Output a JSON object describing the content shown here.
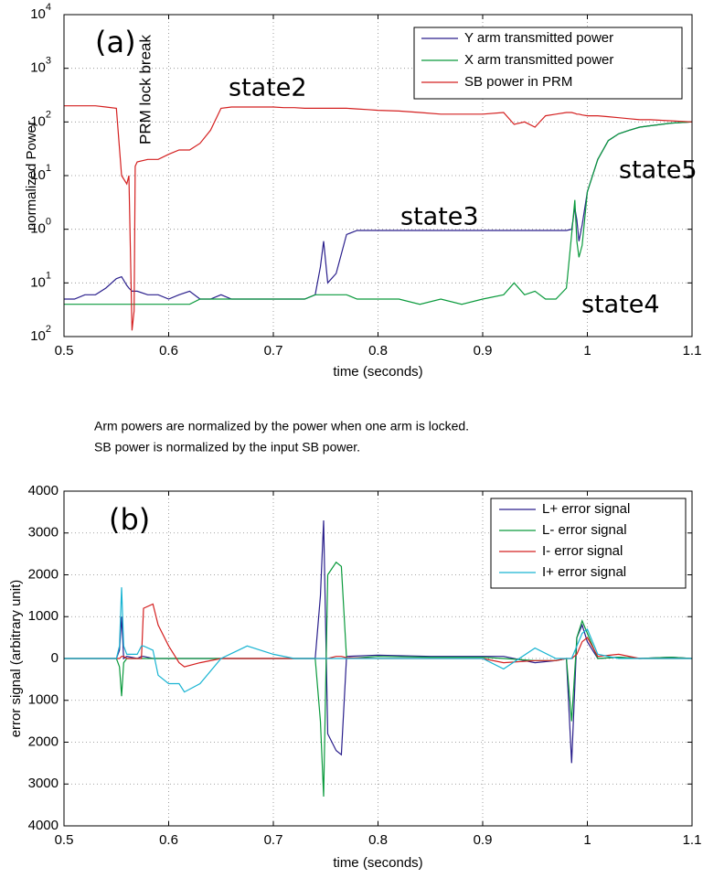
{
  "chart_data": [
    {
      "type": "line",
      "xlabel": "time (seconds)",
      "ylabel": "normalized Power",
      "ylog": true,
      "grid": true,
      "legend": "upper right",
      "xlim": [
        0.5,
        1.1
      ],
      "xticks": [
        0.5,
        0.6,
        0.7,
        0.8,
        0.9,
        1,
        1.1
      ],
      "ylim": [
        0.01,
        10000
      ],
      "yticks": [
        {
          "value": 0.01,
          "label": "10",
          "exponent": "2"
        },
        {
          "value": 0.1,
          "label": "10",
          "exponent": "1"
        },
        {
          "value": 1,
          "label": "10",
          "exponent": "0"
        },
        {
          "value": 10,
          "label": "10",
          "exponent": "1"
        },
        {
          "value": 100,
          "label": "10",
          "exponent": "2"
        },
        {
          "value": 1000,
          "label": "10",
          "exponent": "3"
        },
        {
          "value": 10000,
          "label": "10",
          "exponent": "4"
        }
      ],
      "annotations": [
        "(a)",
        "PRM lock break",
        "state2",
        "state3",
        "state5",
        "state4"
      ],
      "x": [
        0.5,
        0.51,
        0.52,
        0.53,
        0.54,
        0.55,
        0.555,
        0.56,
        0.562,
        0.565,
        0.567,
        0.568,
        0.57,
        0.58,
        0.59,
        0.6,
        0.61,
        0.62,
        0.63,
        0.64,
        0.65,
        0.66,
        0.67,
        0.68,
        0.69,
        0.7,
        0.71,
        0.72,
        0.73,
        0.74,
        0.745,
        0.748,
        0.752,
        0.76,
        0.77,
        0.78,
        0.79,
        0.8,
        0.82,
        0.84,
        0.86,
        0.88,
        0.9,
        0.92,
        0.93,
        0.94,
        0.95,
        0.96,
        0.97,
        0.98,
        0.985,
        0.988,
        0.99,
        0.992,
        0.995,
        1.0,
        1.01,
        1.02,
        1.03,
        1.04,
        1.05,
        1.06,
        1.08,
        1.1
      ],
      "series": [
        {
          "name": "Y arm transmitted power",
          "color": "#2a1f8c",
          "values": [
            0.05,
            0.05,
            0.06,
            0.06,
            0.08,
            0.12,
            0.13,
            0.09,
            0.08,
            0.07,
            0.07,
            0.07,
            0.07,
            0.06,
            0.06,
            0.05,
            0.06,
            0.07,
            0.05,
            0.05,
            0.06,
            0.05,
            0.05,
            0.05,
            0.05,
            0.05,
            0.05,
            0.05,
            0.05,
            0.06,
            0.2,
            0.6,
            0.1,
            0.15,
            0.8,
            0.95,
            0.95,
            0.95,
            0.95,
            0.95,
            0.95,
            0.95,
            0.95,
            0.95,
            0.95,
            0.95,
            0.95,
            0.95,
            0.95,
            0.95,
            1,
            2.5,
            1.5,
            0.6,
            1.2,
            5,
            20,
            45,
            60,
            70,
            80,
            85,
            95,
            100
          ]
        },
        {
          "name": "X arm transmitted power",
          "color": "#0a9a3c",
          "values": [
            0.04,
            0.04,
            0.04,
            0.04,
            0.04,
            0.04,
            0.04,
            0.04,
            0.04,
            0.04,
            0.04,
            0.04,
            0.04,
            0.04,
            0.04,
            0.04,
            0.04,
            0.04,
            0.05,
            0.05,
            0.05,
            0.05,
            0.05,
            0.05,
            0.05,
            0.05,
            0.05,
            0.05,
            0.05,
            0.06,
            0.06,
            0.06,
            0.06,
            0.06,
            0.06,
            0.05,
            0.05,
            0.05,
            0.05,
            0.04,
            0.05,
            0.04,
            0.05,
            0.06,
            0.1,
            0.06,
            0.07,
            0.05,
            0.05,
            0.08,
            0.8,
            3.5,
            0.6,
            0.3,
            0.5,
            5,
            20,
            45,
            60,
            70,
            80,
            85,
            95,
            100
          ]
        },
        {
          "name": "SB power in PRM",
          "color": "#d42020",
          "values": [
            200,
            200,
            200,
            200,
            190,
            180,
            10,
            7,
            10,
            0.013,
            0.03,
            15,
            18,
            20,
            20,
            25,
            30,
            30,
            40,
            70,
            180,
            190,
            190,
            190,
            190,
            190,
            185,
            185,
            180,
            180,
            180,
            180,
            180,
            180,
            180,
            175,
            170,
            165,
            160,
            150,
            140,
            140,
            140,
            150,
            90,
            100,
            80,
            130,
            140,
            150,
            150,
            145,
            140,
            140,
            135,
            130,
            130,
            125,
            120,
            115,
            110,
            110,
            105,
            100
          ]
        }
      ]
    },
    {
      "type": "line",
      "xlabel": "time (seconds)",
      "ylabel": "error signal (arbitrary unit)",
      "grid": true,
      "legend": "upper right",
      "xlim": [
        0.5,
        1.1
      ],
      "xticks": [
        0.5,
        0.6,
        0.7,
        0.8,
        0.9,
        1,
        1.1
      ],
      "ylim": [
        -4000,
        4000
      ],
      "yticks": [
        {
          "value": -4000,
          "label": "4000"
        },
        {
          "value": -3000,
          "label": "3000"
        },
        {
          "value": -2000,
          "label": "2000"
        },
        {
          "value": -1000,
          "label": "1000"
        },
        0,
        1000,
        2000,
        3000,
        4000
      ],
      "annotations": [
        "(b)"
      ],
      "x": [
        0.5,
        0.53,
        0.55,
        0.553,
        0.555,
        0.557,
        0.56,
        0.57,
        0.574,
        0.576,
        0.585,
        0.59,
        0.6,
        0.61,
        0.615,
        0.63,
        0.65,
        0.675,
        0.7,
        0.72,
        0.74,
        0.745,
        0.748,
        0.752,
        0.76,
        0.765,
        0.77,
        0.8,
        0.85,
        0.9,
        0.92,
        0.95,
        0.97,
        0.98,
        0.985,
        0.99,
        0.995,
        1.0,
        1.01,
        1.03,
        1.05,
        1.08,
        1.1
      ],
      "series": [
        {
          "name": "L+ error signal",
          "color": "#2a1f8c",
          "values": [
            0,
            0,
            0,
            200,
            1000,
            0,
            50,
            0,
            50,
            50,
            0,
            0,
            0,
            0,
            0,
            0,
            0,
            0,
            0,
            0,
            0,
            1500,
            3300,
            -1800,
            -2200,
            -2300,
            50,
            80,
            50,
            50,
            50,
            -100,
            -50,
            0,
            -2500,
            500,
            800,
            400,
            0,
            30,
            0,
            30,
            0
          ]
        },
        {
          "name": "L-  error signal",
          "color": "#0a9a3c",
          "values": [
            0,
            0,
            0,
            -200,
            -900,
            -100,
            0,
            0,
            0,
            0,
            0,
            0,
            0,
            0,
            0,
            0,
            0,
            0,
            0,
            0,
            0,
            -1500,
            -3300,
            2000,
            2300,
            2200,
            0,
            50,
            30,
            30,
            0,
            -50,
            -50,
            0,
            -1500,
            500,
            900,
            600,
            0,
            30,
            0,
            30,
            0
          ]
        },
        {
          "name": "I-  error signal",
          "color": "#d42020",
          "values": [
            0,
            0,
            0,
            0,
            50,
            50,
            0,
            0,
            0,
            1200,
            1300,
            800,
            300,
            -100,
            -200,
            -100,
            0,
            0,
            0,
            0,
            0,
            0,
            0,
            0,
            50,
            50,
            20,
            0,
            0,
            0,
            -100,
            -50,
            -50,
            0,
            0,
            100,
            400,
            500,
            50,
            100,
            0,
            0,
            0
          ]
        },
        {
          "name": "I+ error signal",
          "color": "#19b4d2",
          "values": [
            0,
            0,
            0,
            300,
            1700,
            300,
            100,
            100,
            300,
            300,
            200,
            -400,
            -600,
            -600,
            -800,
            -600,
            0,
            300,
            100,
            0,
            0,
            0,
            0,
            0,
            0,
            0,
            0,
            0,
            0,
            0,
            -250,
            250,
            0,
            0,
            0,
            300,
            600,
            700,
            100,
            0,
            0,
            0,
            0
          ]
        }
      ]
    }
  ],
  "notes": [
    "Arm powers are normalized by the power when one arm is locked.",
    "SB power is normalized by the input SB power."
  ]
}
